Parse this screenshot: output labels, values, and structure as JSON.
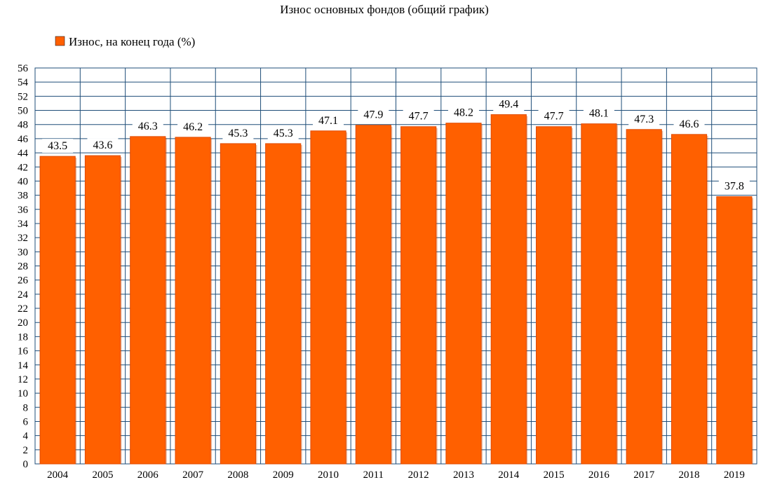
{
  "chart_data": {
    "type": "bar",
    "title": "Износ основных фондов (общий график)",
    "categories": [
      "2004",
      "2005",
      "2006",
      "2007",
      "2008",
      "2009",
      "2010",
      "2011",
      "2012",
      "2013",
      "2014",
      "2015",
      "2016",
      "2017",
      "2018",
      "2019"
    ],
    "series": [
      {
        "name": "Износ, на конец года (%)",
        "values": [
          43.5,
          43.6,
          46.3,
          46.2,
          45.3,
          45.3,
          47.1,
          47.9,
          47.7,
          48.2,
          49.4,
          47.7,
          48.1,
          47.3,
          46.6,
          37.8
        ],
        "color": "#ff6000"
      }
    ],
    "xlabel": "",
    "ylabel": "",
    "ylim": [
      0,
      56
    ],
    "ytick_step": 2,
    "grid": true,
    "legend_position": "top-left",
    "colors": {
      "grid": "#1f4e79",
      "bar": "#ff6000",
      "bar_edge": "#e04a00"
    }
  }
}
